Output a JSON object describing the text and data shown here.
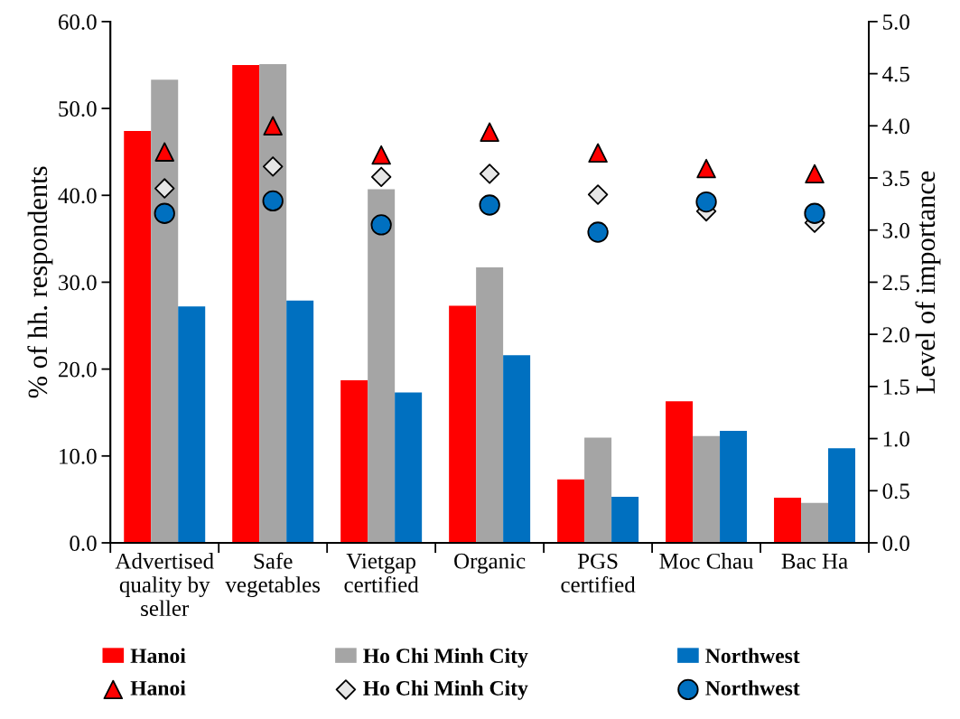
{
  "chart_data": {
    "type": "bar",
    "ylabel": "% of hh. respondents",
    "y2label": "Level of importance",
    "categories": [
      "Advertised\nquality by\nseller",
      "Safe\nvegetables",
      "Vietgap\ncertified",
      "Organic",
      "PGS\ncertified",
      "Moc Chau",
      "Bac Ha"
    ],
    "series": [
      {
        "name": "Hanoi",
        "color": "#ff0000",
        "values": [
          47.4,
          55.0,
          18.7,
          27.3,
          7.3,
          16.3,
          5.2
        ]
      },
      {
        "name": "Ho Chi Minh City",
        "color": "#a5a5a5",
        "values": [
          53.3,
          55.1,
          40.7,
          31.7,
          12.1,
          12.3,
          4.6
        ]
      },
      {
        "name": "Northwest",
        "color": "#0070c0",
        "values": [
          27.2,
          27.9,
          17.3,
          21.6,
          5.3,
          12.9,
          10.9
        ]
      },
      {
        "type": "scatter",
        "name": "Hanoi",
        "color": "#ff0000",
        "axis": "y2",
        "marker": "triangle",
        "values": [
          3.75,
          4.0,
          3.72,
          3.94,
          3.74,
          3.59,
          3.54
        ]
      },
      {
        "type": "scatter",
        "name": "Ho Chi Minh City",
        "color": "#e6e6e6",
        "axis": "y2",
        "marker": "diamond",
        "values": [
          3.4,
          3.61,
          3.51,
          3.54,
          3.34,
          3.18,
          3.07
        ]
      },
      {
        "type": "scatter",
        "name": "Northwest",
        "color": "#0070c0",
        "axis": "y2",
        "marker": "circle",
        "values": [
          3.16,
          3.28,
          3.05,
          3.24,
          2.98,
          3.27,
          3.16
        ]
      }
    ],
    "ylim": [
      0,
      60
    ],
    "yticks": [
      {
        "value": 0,
        "label": "0.0"
      },
      {
        "value": 10,
        "label": "10.0"
      },
      {
        "value": 20,
        "label": "20.0"
      },
      {
        "value": 30,
        "label": "30.0"
      },
      {
        "value": 40,
        "label": "40.0"
      },
      {
        "value": 50,
        "label": "50.0"
      },
      {
        "value": 60,
        "label": "60.0"
      }
    ],
    "y2lim": [
      0,
      5
    ],
    "y2ticks": [
      {
        "value": 0,
        "label": "0.0"
      },
      {
        "value": 0.5,
        "label": "0.5"
      },
      {
        "value": 1,
        "label": "1.0"
      },
      {
        "value": 1.5,
        "label": "1.5"
      },
      {
        "value": 2,
        "label": "2.0"
      },
      {
        "value": 2.5,
        "label": "2.5"
      },
      {
        "value": 3,
        "label": "3.0"
      },
      {
        "value": 3.5,
        "label": "3.5"
      },
      {
        "value": 4,
        "label": "4.0"
      },
      {
        "value": 4.5,
        "label": "4.5"
      },
      {
        "value": 5,
        "label": "5.0"
      }
    ],
    "grid": false,
    "legend": "bottom"
  }
}
